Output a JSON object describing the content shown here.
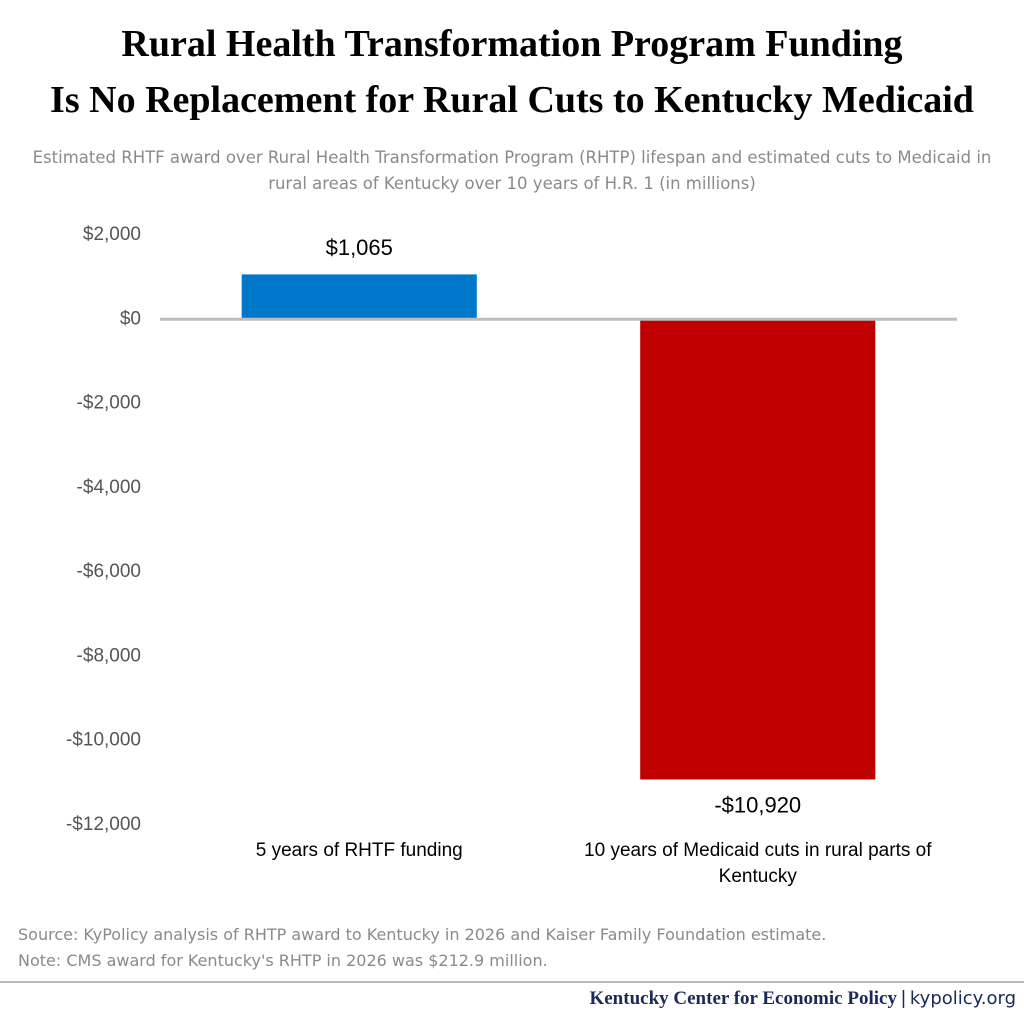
{
  "chart_data": {
    "type": "bar",
    "title": [
      "Rural Health Transformation Program Funding",
      "Is No Replacement for Rural Cuts to Kentucky Medicaid"
    ],
    "subtitle": "Estimated RHTF award over Rural Health Transformation Program (RHTP) lifespan and estimated cuts to Medicaid in rural areas of Kentucky over 10 years of H.R. 1 (in millions)",
    "categories": [
      "5 years of RHTF funding",
      "10 years of Medicaid cuts in rural parts of Kentucky"
    ],
    "values": [
      1065,
      -10920
    ],
    "value_labels": [
      "$1,065",
      "-$10,920"
    ],
    "colors": [
      "#0077c8",
      "#c00000"
    ],
    "ylim": [
      -12000,
      2000
    ],
    "yticks": [
      {
        "value": 2000,
        "label": "$2,000"
      },
      {
        "value": 0,
        "label": "$0"
      },
      {
        "value": -2000,
        "label": "-$2,000"
      },
      {
        "value": -4000,
        "label": "-$4,000"
      },
      {
        "value": -6000,
        "label": "-$6,000"
      },
      {
        "value": -8000,
        "label": "-$8,000"
      },
      {
        "value": -10000,
        "label": "-$10,000"
      },
      {
        "value": -12000,
        "label": "-$12,000"
      }
    ],
    "grid": false,
    "source": "Source: KyPolicy analysis of RHTP award to Kentucky in 2026 and Kaiser Family Foundation estimate.",
    "note": "Note: CMS award for Kentucky's RHTP in 2026 was $212.9 million.",
    "organization": "Kentucky Center for Economic Policy",
    "website": "kypolicy.org"
  }
}
